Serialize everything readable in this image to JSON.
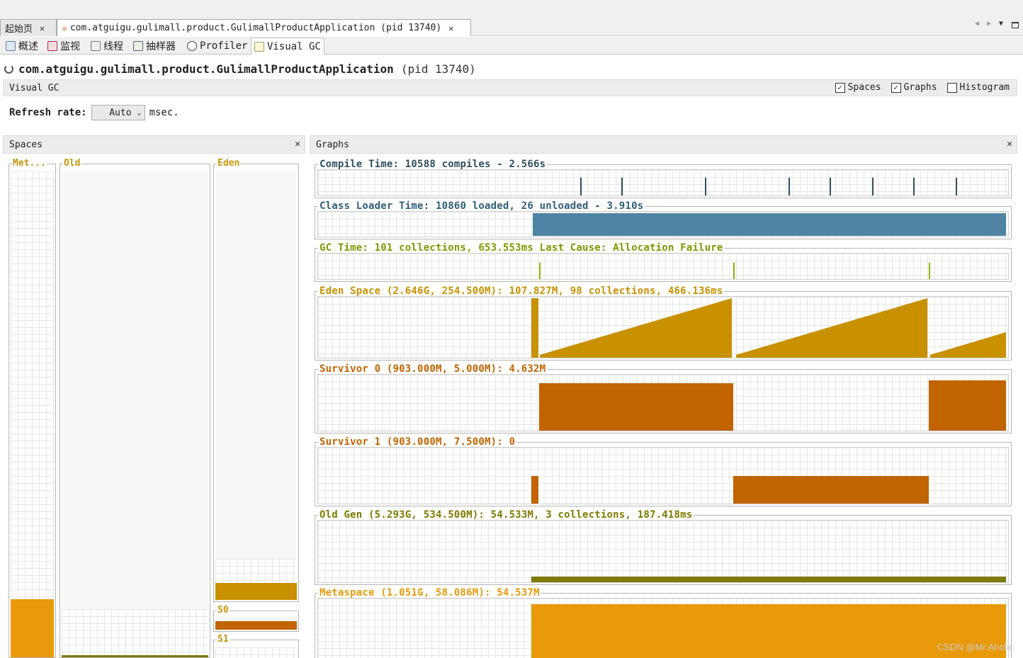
{
  "window_tabs": [
    {
      "label": "起始页",
      "close": "✕"
    },
    {
      "label": "com.atguigu.gulimall.product.GulimallProductApplication (pid 13740)",
      "close": "✕"
    }
  ],
  "sub_tabs": [
    "概述",
    "监视",
    "线程",
    "抽样器",
    "Profiler",
    "Visual GC"
  ],
  "app": {
    "name": "com.atguigu.gulimall.product.GulimallProductApplication",
    "pid": "(pid 13740)"
  },
  "vgc_header": {
    "title": "Visual GC",
    "checks": [
      {
        "label": "Spaces",
        "checked": true
      },
      {
        "label": "Graphs",
        "checked": true
      },
      {
        "label": "Histogram",
        "checked": false
      }
    ]
  },
  "refresh": {
    "label": "Refresh rate:",
    "value": "Auto",
    "unit": "msec."
  },
  "spaces_panel": {
    "title": "Spaces",
    "close": "✕",
    "metaspace": {
      "label": "Met...",
      "fill": 0.12
    },
    "old": {
      "label": "Old",
      "fill": 0.005
    },
    "eden": {
      "label": "Eden",
      "fill": 0.04
    },
    "s0": {
      "label": "S0",
      "fill": 0.6
    },
    "s1": {
      "label": "S1",
      "fill": 0.0
    }
  },
  "graphs_panel": {
    "title": "Graphs",
    "close": "✕",
    "compile": {
      "title": "Compile Time: 10588 compiles - 2.566s",
      "color": "#2f4f5f"
    },
    "classloader": {
      "title": "Class Loader Time: 10860 loaded, 26 unloaded - 3.910s",
      "color": "#4f83a4"
    },
    "gctime": {
      "title": "GC Time: 101 collections, 653.553ms Last Cause: Allocation Failure",
      "color": "#8db600"
    },
    "eden": {
      "title": "Eden Space (2.646G, 254.500M): 107.827M, 98 collections, 466.136ms",
      "color": "#c99000"
    },
    "survivor0": {
      "title": "Survivor 0 (903.000M, 5.000M): 4.632M",
      "color": "#c26400"
    },
    "survivor1": {
      "title": "Survivor 1 (903.000M, 7.500M): 0",
      "color": "#c26400"
    },
    "oldgen": {
      "title": "Old Gen (5.293G, 534.500M): 54.533M, 3 collections, 187.418ms",
      "color": "#7f7a00"
    },
    "metaspace": {
      "title": "Metaspace (1.051G, 58.086M): 54.537M",
      "color": "#e89a0a"
    }
  },
  "watermark": "CSDN @Mr.Aholic"
}
